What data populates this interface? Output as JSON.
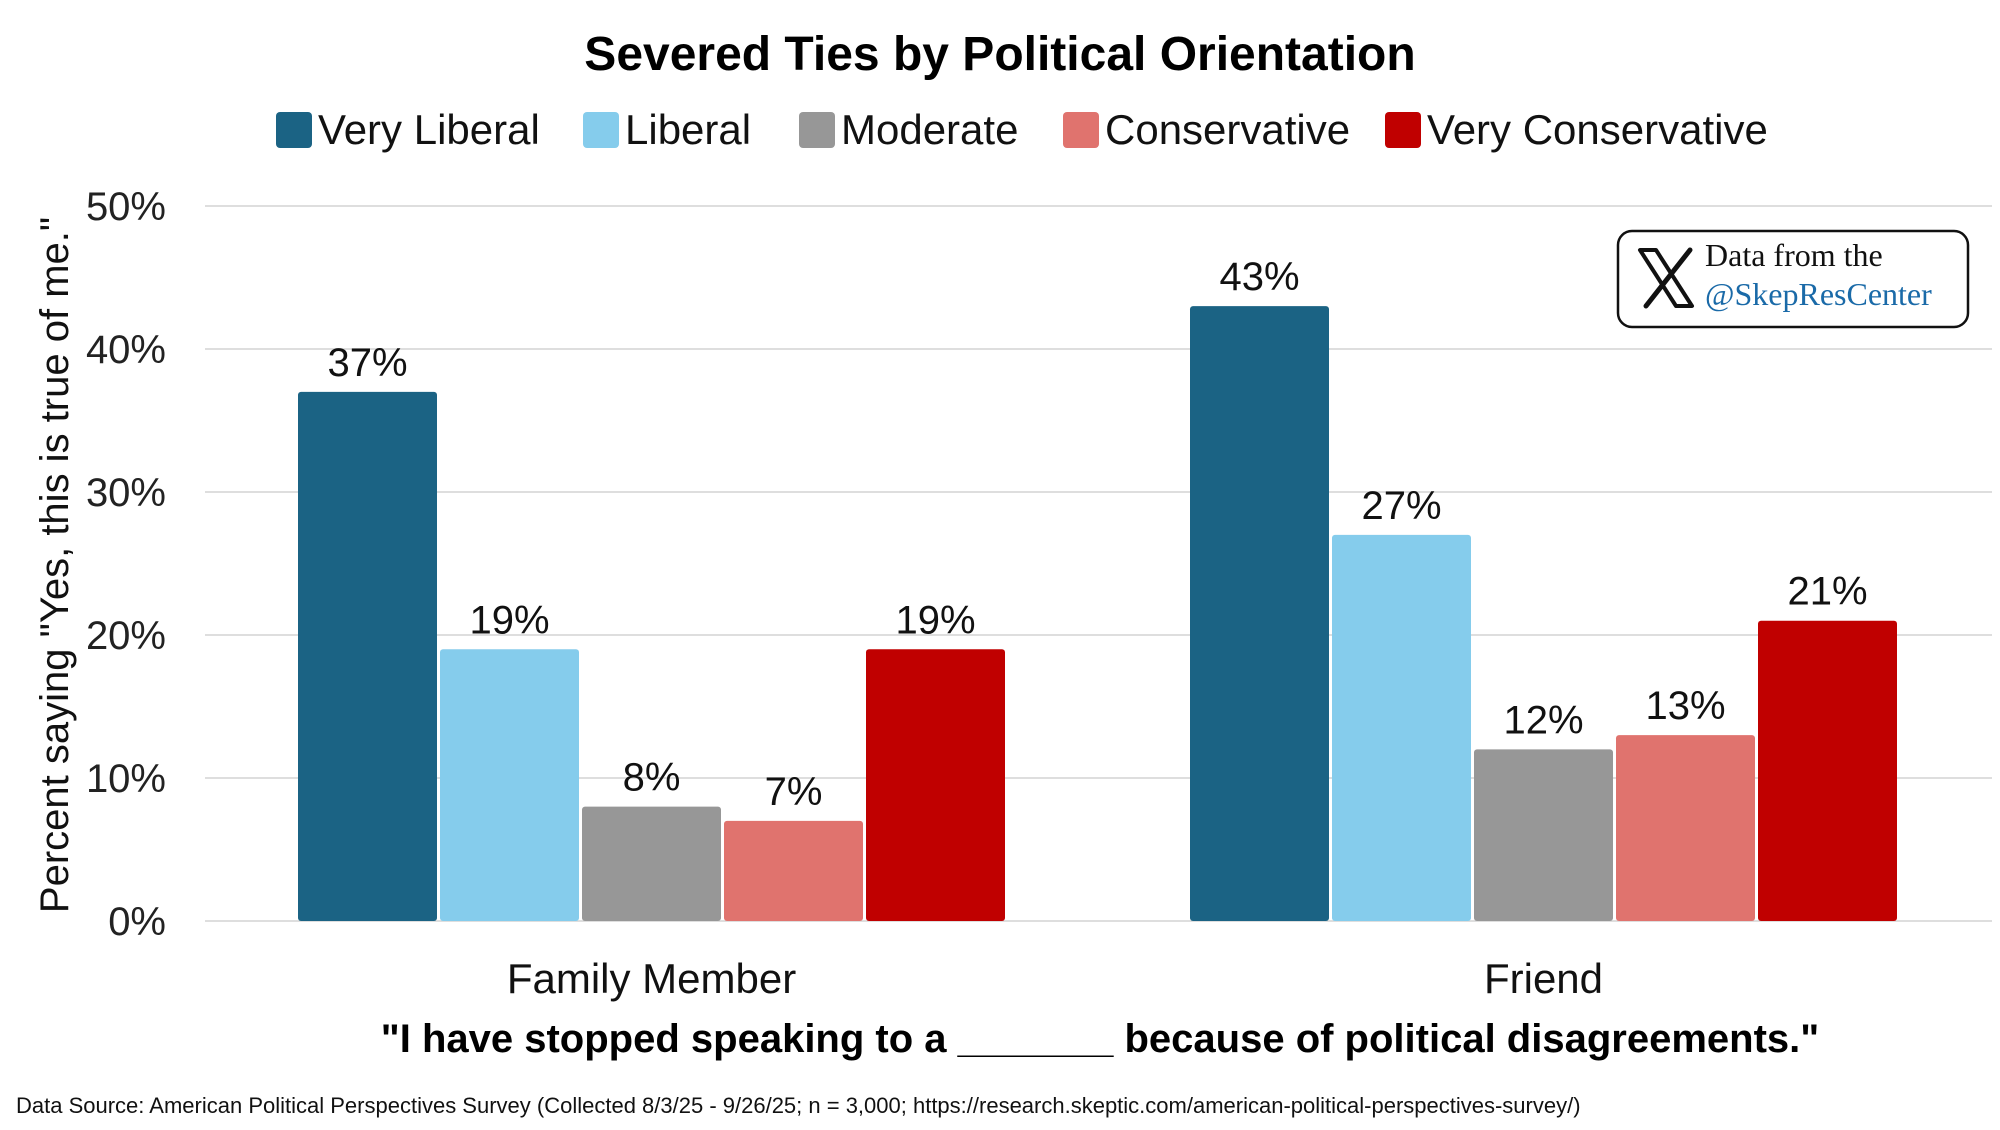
{
  "chart_data": {
    "type": "bar",
    "title": "Severed Ties by Political Orientation",
    "categories": [
      "Family Member",
      "Friend"
    ],
    "series": [
      {
        "name": "Very Liberal",
        "color": "#1b6384",
        "values": [
          37,
          43
        ],
        "labels": [
          "37%",
          "43%"
        ]
      },
      {
        "name": "Liberal",
        "color": "#85ccec",
        "values": [
          19,
          27
        ],
        "labels": [
          "19%",
          "27%"
        ]
      },
      {
        "name": "Moderate",
        "color": "#979797",
        "values": [
          8,
          12
        ],
        "labels": [
          "8%",
          "12%"
        ]
      },
      {
        "name": "Conservative",
        "color": "#e0736e",
        "values": [
          7,
          13
        ],
        "labels": [
          "7%",
          "13%"
        ]
      },
      {
        "name": "Very Conservative",
        "color": "#c00000",
        "values": [
          19,
          21
        ],
        "labels": [
          "19%",
          "21%"
        ]
      }
    ],
    "ylabel": "Percent saying \"Yes, this is true of me.\"",
    "xlabel": "\"I have stopped speaking to a _______ because of political disagreements.\"",
    "ylim": [
      0,
      50
    ],
    "yticks": [
      0,
      10,
      20,
      30,
      40,
      50
    ],
    "ytick_labels": [
      "0%",
      "10%",
      "20%",
      "30%",
      "40%",
      "50%"
    ],
    "grid": true,
    "legend_position": "top"
  },
  "badge": {
    "icon": "x-logo-icon",
    "line1": "Data from the",
    "line2": "@SkepResCenter",
    "handle_color": "#1a6aa8"
  },
  "source_text": "Data Source: American Political Perspectives Survey (Collected 8/3/25 - 9/26/25; n = 3,000; https://research.skeptic.com/american-political-perspectives-survey/)"
}
